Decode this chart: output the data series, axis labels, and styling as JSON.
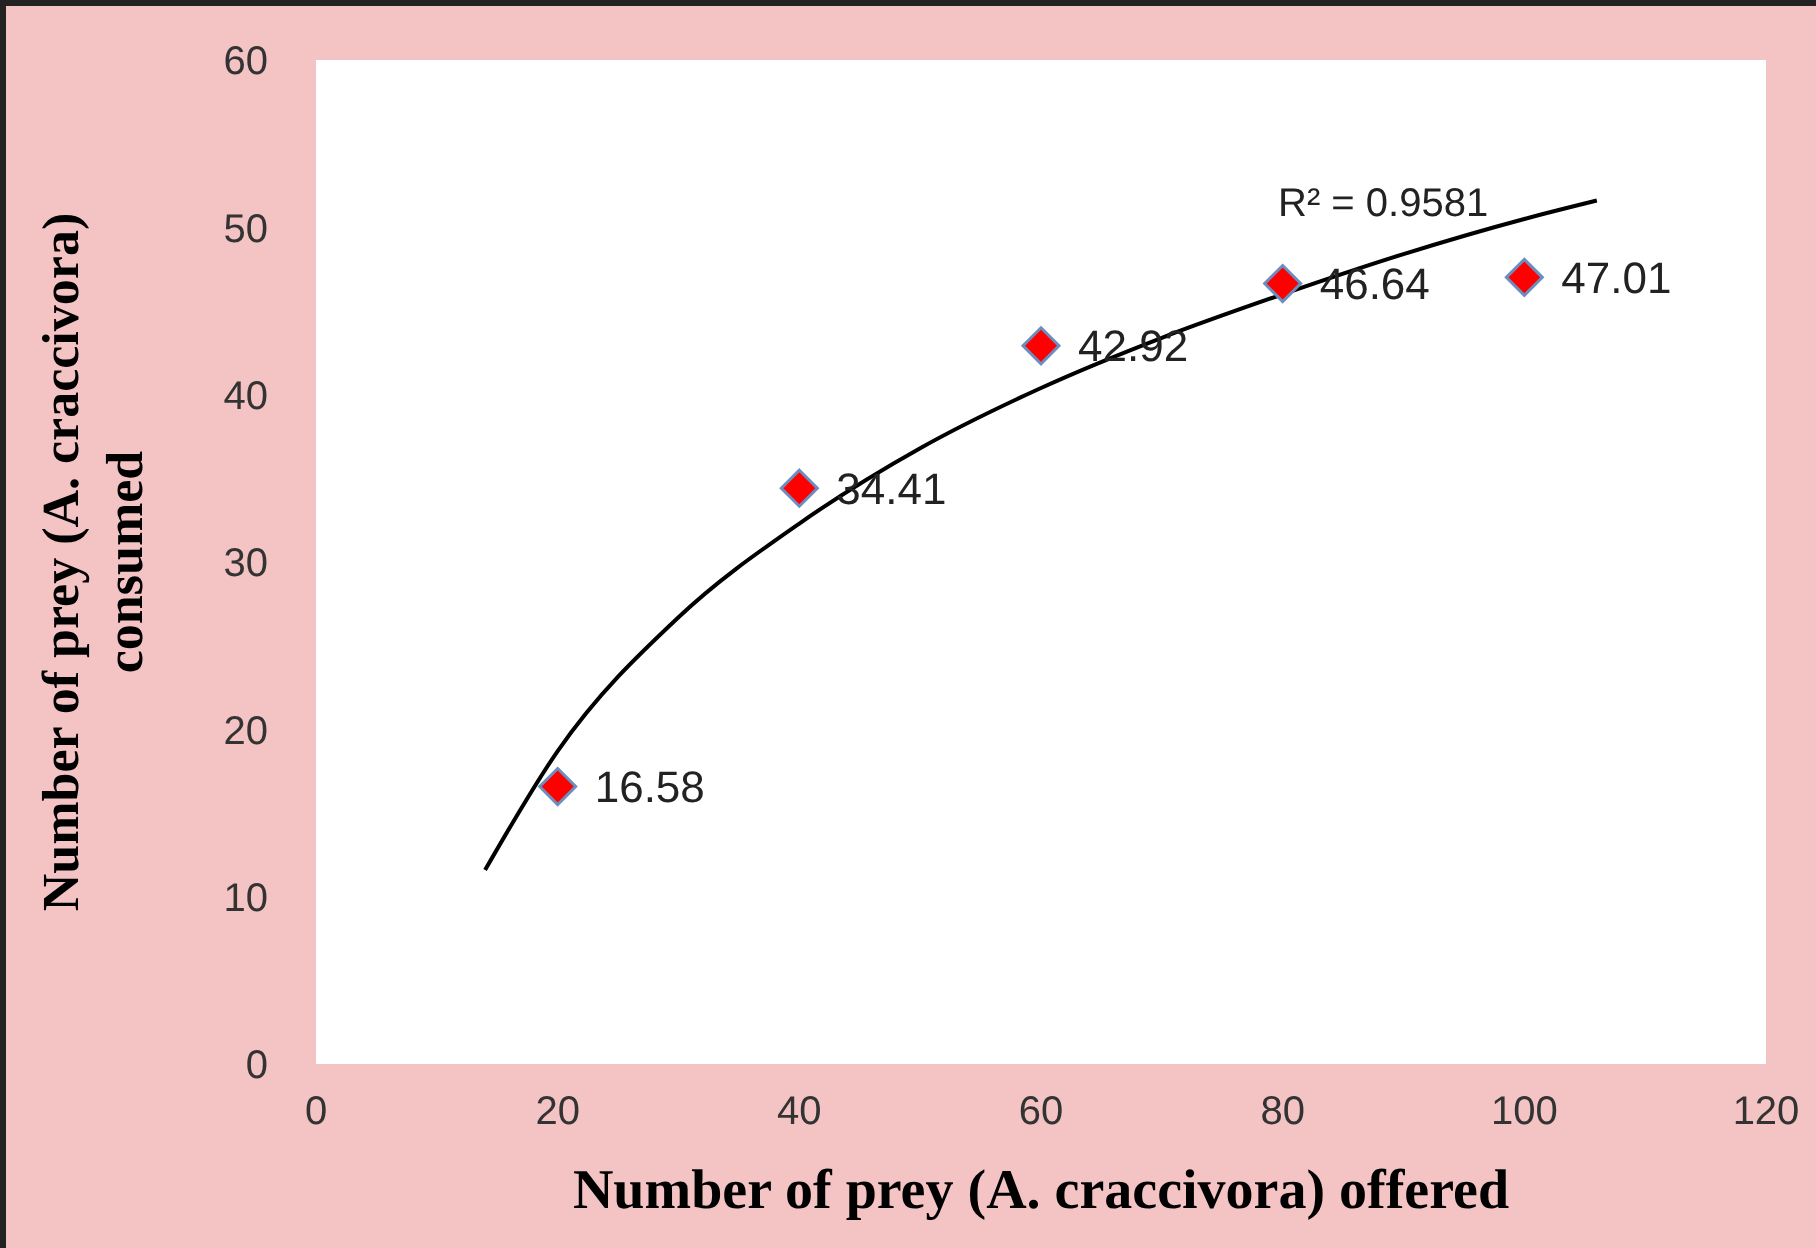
{
  "chart_data": {
    "type": "scatter",
    "xlabel": "Number of prey (A. craccivora) offered",
    "ylabel": "Number of prey (A. craccivora) consumed",
    "x": [
      20,
      40,
      60,
      80,
      100
    ],
    "xlim": [
      0,
      120
    ],
    "xticks": [
      0,
      20,
      40,
      60,
      80,
      100,
      120
    ],
    "ylim": [
      0,
      60
    ],
    "yticks": [
      0,
      10,
      20,
      30,
      40,
      50,
      60
    ],
    "grid": false,
    "series": [
      {
        "marker": "diamond",
        "color": "#ff0000",
        "values": [
          16.58,
          34.41,
          42.92,
          46.64,
          47.01
        ],
        "value_labels": [
          "16.58",
          "34.41",
          "42.92",
          "46.64",
          "47.01"
        ]
      },
      {
        "type": "line",
        "marker": "none",
        "color": "#000000",
        "x": [
          14,
          20,
          30,
          40,
          50,
          60,
          70,
          80,
          90,
          100,
          106
        ],
        "values": [
          11.6,
          18.7,
          26.7,
          32.3,
          36.8,
          40.4,
          43.4,
          46.0,
          48.4,
          50.5,
          51.6
        ]
      }
    ],
    "annotations": [
      "R² = 0.9581"
    ]
  }
}
